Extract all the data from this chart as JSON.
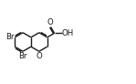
{
  "background_color": "#ffffff",
  "line_color": "#1a1a1a",
  "line_width": 1.0,
  "font_size": 6.2,
  "font_size_small": 5.8,
  "ring_r": 0.115,
  "rcx": 0.455,
  "rcy": 0.5,
  "Br6_label": "Br",
  "Br8_label": "Br",
  "O_label": "O",
  "O_carbonyl_label": "O",
  "OH_label": "OH"
}
